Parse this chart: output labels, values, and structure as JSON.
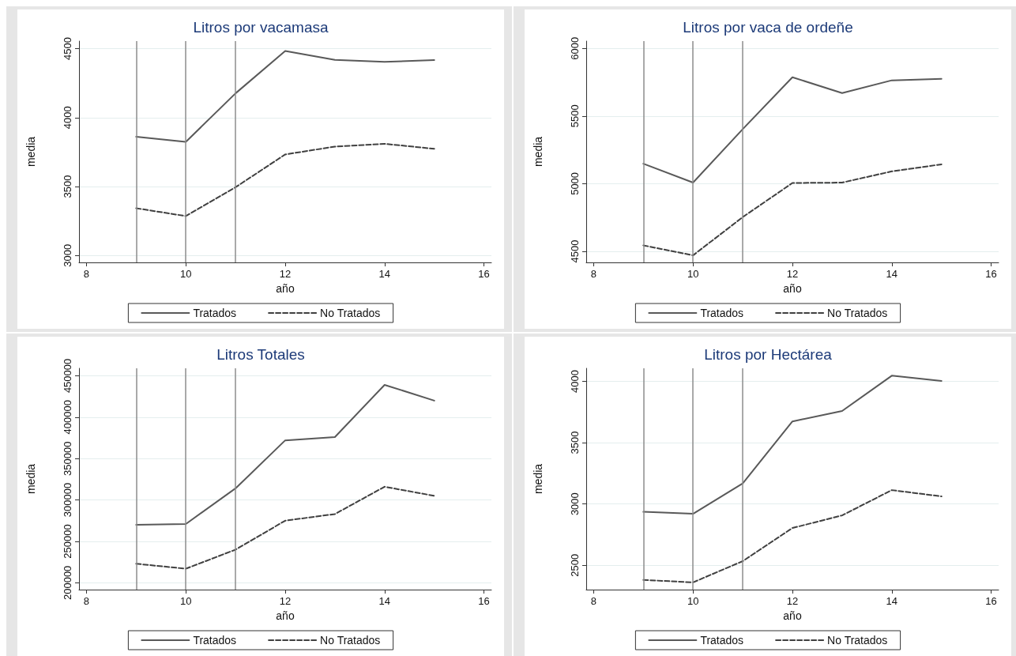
{
  "chart_data": [
    {
      "type": "line",
      "title": "Litros por vacamasa",
      "xlabel": "año",
      "ylabel": "media",
      "x": [
        9,
        10,
        11,
        12,
        13,
        14,
        15
      ],
      "xlim": [
        7.85,
        16.15
      ],
      "xticks": [
        8,
        10,
        12,
        14,
        16
      ],
      "ylim": [
        2950,
        4555
      ],
      "yticks": [
        3000,
        3500,
        4000,
        4500
      ],
      "grid": "y",
      "legend": "bottom",
      "marker": "none",
      "series": [
        {
          "name": "Tratados",
          "color": "#595959",
          "line_style": "solid",
          "values": [
            3862,
            3824,
            4176,
            4483,
            4419,
            4405,
            4417
          ]
        },
        {
          "name": "No Tratados",
          "color": "#404040",
          "line_style": "dashed",
          "values": [
            3343,
            3286,
            3495,
            3733,
            3790,
            3810,
            3774
          ]
        }
      ],
      "ref_lines": [
        {
          "axis": "x",
          "value": 9,
          "color": "#8c8c8c"
        },
        {
          "axis": "x",
          "value": 10,
          "color": "#8c8c8c"
        },
        {
          "axis": "x",
          "value": 11,
          "color": "#8c8c8c"
        }
      ]
    },
    {
      "type": "line",
      "title": "Litros por vaca de ordeñe",
      "xlabel": "año",
      "ylabel": "media",
      "x": [
        9,
        10,
        11,
        12,
        13,
        14,
        15
      ],
      "xlim": [
        7.85,
        16.15
      ],
      "xticks": [
        8,
        10,
        12,
        14,
        16
      ],
      "ylim": [
        4418,
        6054
      ],
      "yticks": [
        4500,
        5000,
        5500,
        6000
      ],
      "grid": "y",
      "legend": "bottom",
      "marker": "none",
      "series": [
        {
          "name": "Tratados",
          "color": "#595959",
          "line_style": "solid",
          "values": [
            5148,
            5008,
            5403,
            5787,
            5670,
            5764,
            5775
          ]
        },
        {
          "name": "No Tratados",
          "color": "#404040",
          "line_style": "dashed",
          "values": [
            4544,
            4470,
            4753,
            5005,
            5008,
            5091,
            5143
          ]
        }
      ],
      "ref_lines": [
        {
          "axis": "x",
          "value": 9,
          "color": "#8c8c8c"
        },
        {
          "axis": "x",
          "value": 10,
          "color": "#8c8c8c"
        },
        {
          "axis": "x",
          "value": 11,
          "color": "#8c8c8c"
        }
      ]
    },
    {
      "type": "line",
      "title": "Litros Totales",
      "xlabel": "año",
      "ylabel": "media",
      "x": [
        9,
        10,
        11,
        12,
        13,
        14,
        15
      ],
      "xlim": [
        7.85,
        16.15
      ],
      "xticks": [
        8,
        10,
        12,
        14,
        16
      ],
      "ylim": [
        191750,
        459000
      ],
      "yticks": [
        200000,
        250000,
        300000,
        350000,
        400000,
        450000
      ],
      "grid": "y",
      "legend": "bottom",
      "marker": "none",
      "series": [
        {
          "name": "Tratados",
          "color": "#595959",
          "line_style": "solid",
          "values": [
            270000,
            271000,
            314000,
            372000,
            376000,
            439000,
            420000
          ]
        },
        {
          "name": "No Tratados",
          "color": "#404040",
          "line_style": "dashed",
          "values": [
            223000,
            217000,
            240000,
            275000,
            283000,
            316000,
            305000
          ]
        }
      ],
      "ref_lines": [
        {
          "axis": "x",
          "value": 9,
          "color": "#8c8c8c"
        },
        {
          "axis": "x",
          "value": 10,
          "color": "#8c8c8c"
        },
        {
          "axis": "x",
          "value": 11,
          "color": "#8c8c8c"
        }
      ]
    },
    {
      "type": "line",
      "title": "Litros por Hectárea",
      "xlabel": "año",
      "ylabel": "media",
      "x": [
        9,
        10,
        11,
        12,
        13,
        14,
        15
      ],
      "xlim": [
        7.85,
        16.15
      ],
      "xticks": [
        8,
        10,
        12,
        14,
        16
      ],
      "ylim": [
        2302,
        4106
      ],
      "yticks": [
        2500,
        3000,
        3500,
        4000
      ],
      "grid": "y",
      "legend": "bottom",
      "marker": "none",
      "series": [
        {
          "name": "Tratados",
          "color": "#595959",
          "line_style": "solid",
          "values": [
            2936,
            2920,
            3168,
            3673,
            3758,
            4046,
            4003
          ]
        },
        {
          "name": "No Tratados",
          "color": "#404040",
          "line_style": "dashed",
          "values": [
            2381,
            2361,
            2534,
            2804,
            2907,
            3113,
            3062
          ]
        }
      ],
      "ref_lines": [
        {
          "axis": "x",
          "value": 9,
          "color": "#8c8c8c"
        },
        {
          "axis": "x",
          "value": 10,
          "color": "#8c8c8c"
        },
        {
          "axis": "x",
          "value": 11,
          "color": "#8c8c8c"
        }
      ]
    }
  ]
}
